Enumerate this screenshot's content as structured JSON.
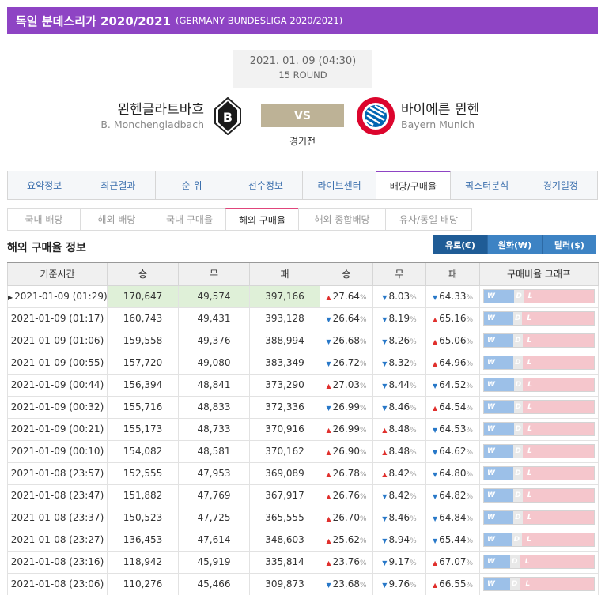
{
  "header": {
    "title": "독일 분데스리가 2020/2021",
    "subtitle": "(GERMANY BUNDESLIGA 2020/2021)"
  },
  "match": {
    "datetime": "2021. 01. 09 (04:30)",
    "round": "15 ROUND",
    "home_name": "묀헨글라트바흐",
    "home_en": "B. Monchengladbach",
    "away_name": "바이에른 뮌헨",
    "away_en": "Bayern Munich",
    "vs_label": "VS",
    "status": "경기전",
    "home_logo_icon": "gladbach-crest-icon",
    "away_logo_icon": "bayern-crest-icon"
  },
  "tabs": [
    "요약정보",
    "최근결과",
    "순 위",
    "선수정보",
    "라이브센터",
    "배당/구매율",
    "픽스터분석",
    "경기일정"
  ],
  "active_tab": 5,
  "subtabs": [
    "국내 배당",
    "해외 배당",
    "국내 구매율",
    "해외 구매율",
    "해외 종합배당",
    "유사/동일 배당"
  ],
  "active_subtab": 3,
  "section_title": "해외 구매율 정보",
  "currency": [
    "유로(€)",
    "원화(₩)",
    "달러($)"
  ],
  "table": {
    "headers": [
      "기준시간",
      "승",
      "무",
      "패",
      "승",
      "무",
      "패",
      "구매비율 그래프"
    ],
    "pct_unit": "%",
    "graph_labels": {
      "w": "W",
      "d": "D",
      "l": "L"
    },
    "colors": {
      "up": "#e0302d",
      "down": "#2878c8",
      "win": "#9cc0e8",
      "draw": "#e8e8e8",
      "loss": "#f5c6cc"
    },
    "rows": [
      {
        "time": "2021-01-09 (01:29)",
        "w": "170,647",
        "d": "49,574",
        "l": "397,166",
        "wp": "27.64",
        "dp": "8.03",
        "lp": "64.33",
        "wa": "up",
        "da": "down",
        "la": "down",
        "current": true
      },
      {
        "time": "2021-01-09 (01:17)",
        "w": "160,743",
        "d": "49,431",
        "l": "393,128",
        "wp": "26.64",
        "dp": "8.19",
        "lp": "65.16",
        "wa": "down",
        "da": "down",
        "la": "up"
      },
      {
        "time": "2021-01-09 (01:06)",
        "w": "159,558",
        "d": "49,376",
        "l": "388,994",
        "wp": "26.68",
        "dp": "8.26",
        "lp": "65.06",
        "wa": "down",
        "da": "down",
        "la": "up"
      },
      {
        "time": "2021-01-09 (00:55)",
        "w": "157,720",
        "d": "49,080",
        "l": "383,349",
        "wp": "26.72",
        "dp": "8.32",
        "lp": "64.96",
        "wa": "down",
        "da": "down",
        "la": "up"
      },
      {
        "time": "2021-01-09 (00:44)",
        "w": "156,394",
        "d": "48,841",
        "l": "373,290",
        "wp": "27.03",
        "dp": "8.44",
        "lp": "64.52",
        "wa": "up",
        "da": "down",
        "la": "down"
      },
      {
        "time": "2021-01-09 (00:32)",
        "w": "155,716",
        "d": "48,833",
        "l": "372,336",
        "wp": "26.99",
        "dp": "8.46",
        "lp": "64.54",
        "wa": "down",
        "da": "down",
        "la": "up"
      },
      {
        "time": "2021-01-09 (00:21)",
        "w": "155,173",
        "d": "48,733",
        "l": "370,916",
        "wp": "26.99",
        "dp": "8.48",
        "lp": "64.53",
        "wa": "up",
        "da": "up",
        "la": "down"
      },
      {
        "time": "2021-01-09 (00:10)",
        "w": "154,082",
        "d": "48,581",
        "l": "370,162",
        "wp": "26.90",
        "dp": "8.48",
        "lp": "64.62",
        "wa": "up",
        "da": "up",
        "la": "down"
      },
      {
        "time": "2021-01-08 (23:57)",
        "w": "152,555",
        "d": "47,953",
        "l": "369,089",
        "wp": "26.78",
        "dp": "8.42",
        "lp": "64.80",
        "wa": "up",
        "da": "up",
        "la": "down"
      },
      {
        "time": "2021-01-08 (23:47)",
        "w": "151,882",
        "d": "47,769",
        "l": "367,917",
        "wp": "26.76",
        "dp": "8.42",
        "lp": "64.82",
        "wa": "up",
        "da": "down",
        "la": "down"
      },
      {
        "time": "2021-01-08 (23:37)",
        "w": "150,523",
        "d": "47,725",
        "l": "365,555",
        "wp": "26.70",
        "dp": "8.46",
        "lp": "64.84",
        "wa": "up",
        "da": "down",
        "la": "down"
      },
      {
        "time": "2021-01-08 (23:27)",
        "w": "136,453",
        "d": "47,614",
        "l": "348,603",
        "wp": "25.62",
        "dp": "8.94",
        "lp": "65.44",
        "wa": "up",
        "da": "down",
        "la": "down"
      },
      {
        "time": "2021-01-08 (23:16)",
        "w": "118,942",
        "d": "45,919",
        "l": "335,814",
        "wp": "23.76",
        "dp": "9.17",
        "lp": "67.07",
        "wa": "up",
        "da": "down",
        "la": "up"
      },
      {
        "time": "2021-01-08 (23:06)",
        "w": "110,276",
        "d": "45,466",
        "l": "309,873",
        "wp": "23.68",
        "dp": "9.76",
        "lp": "66.55",
        "wa": "down",
        "da": "down",
        "la": "up"
      }
    ]
  }
}
